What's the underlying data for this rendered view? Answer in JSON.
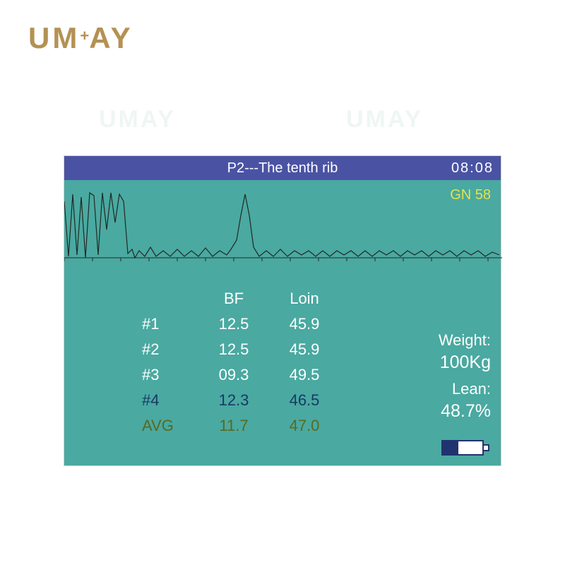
{
  "brand": {
    "text": "UMAY"
  },
  "device": {
    "titlebar": {
      "title": "P2---The tenth rib",
      "clock": "08:08",
      "bg_color": "#4a53a3",
      "text_color": "#ffffff",
      "fontsize": 20
    },
    "panel_color": "#4aa9a1",
    "gn_label": "GN 58",
    "gn_color": "#e6e24a",
    "waveform": {
      "type": "line",
      "xlim": [
        0,
        620
      ],
      "ylim": [
        0,
        120
      ],
      "baseline_y": 110,
      "axis_color": "#1f2a24",
      "line_color": "#1f2a24",
      "line_width": 1.2,
      "tick_step_x": 40,
      "tick_len": 5,
      "points": [
        [
          0,
          30
        ],
        [
          6,
          108
        ],
        [
          12,
          20
        ],
        [
          18,
          106
        ],
        [
          24,
          24
        ],
        [
          30,
          110
        ],
        [
          36,
          18
        ],
        [
          42,
          22
        ],
        [
          48,
          106
        ],
        [
          54,
          18
        ],
        [
          60,
          70
        ],
        [
          66,
          18
        ],
        [
          72,
          60
        ],
        [
          78,
          20
        ],
        [
          84,
          30
        ],
        [
          90,
          104
        ],
        [
          96,
          98
        ],
        [
          100,
          110
        ],
        [
          106,
          100
        ],
        [
          114,
          108
        ],
        [
          122,
          95
        ],
        [
          130,
          108
        ],
        [
          140,
          100
        ],
        [
          150,
          108
        ],
        [
          160,
          98
        ],
        [
          170,
          108
        ],
        [
          180,
          100
        ],
        [
          190,
          108
        ],
        [
          200,
          96
        ],
        [
          210,
          108
        ],
        [
          220,
          100
        ],
        [
          230,
          106
        ],
        [
          236,
          98
        ],
        [
          244,
          85
        ],
        [
          250,
          50
        ],
        [
          256,
          20
        ],
        [
          262,
          50
        ],
        [
          268,
          95
        ],
        [
          276,
          108
        ],
        [
          286,
          100
        ],
        [
          296,
          108
        ],
        [
          306,
          98
        ],
        [
          316,
          108
        ],
        [
          326,
          100
        ],
        [
          336,
          106
        ],
        [
          346,
          100
        ],
        [
          356,
          108
        ],
        [
          366,
          100
        ],
        [
          376,
          108
        ],
        [
          386,
          100
        ],
        [
          396,
          106
        ],
        [
          406,
          100
        ],
        [
          416,
          108
        ],
        [
          426,
          100
        ],
        [
          436,
          108
        ],
        [
          446,
          100
        ],
        [
          456,
          106
        ],
        [
          466,
          100
        ],
        [
          476,
          108
        ],
        [
          486,
          100
        ],
        [
          496,
          106
        ],
        [
          506,
          100
        ],
        [
          516,
          108
        ],
        [
          526,
          100
        ],
        [
          536,
          106
        ],
        [
          546,
          100
        ],
        [
          556,
          108
        ],
        [
          566,
          100
        ],
        [
          576,
          106
        ],
        [
          586,
          100
        ],
        [
          596,
          108
        ],
        [
          606,
          102
        ],
        [
          616,
          106
        ]
      ]
    },
    "table": {
      "headers": {
        "label": "",
        "bf": "BF",
        "loin": "Loin"
      },
      "header_color": "#ffffff",
      "row_color_default": "#ffffff",
      "row_color_highlight": "#173a63",
      "row_color_avg": "#586a1f",
      "fontsize": 22,
      "rows": [
        {
          "label": "#1",
          "bf": "12.5",
          "loin": "45.9",
          "style": "default"
        },
        {
          "label": "#2",
          "bf": "12.5",
          "loin": "45.9",
          "style": "default"
        },
        {
          "label": "#3",
          "bf": "09.3",
          "loin": "49.5",
          "style": "default"
        },
        {
          "label": "#4",
          "bf": "12.3",
          "loin": "46.5",
          "style": "highlight"
        },
        {
          "label": "AVG",
          "bf": "11.7",
          "loin": "47.0",
          "style": "avg"
        }
      ]
    },
    "stats": {
      "weight_label": "Weight:",
      "weight_value": "100Kg",
      "lean_label": "Lean:",
      "lean_value": "48.7%",
      "text_color": "#ffffff",
      "fontsize": 22
    },
    "battery": {
      "percent": 40,
      "border_color": "#21336f",
      "fill_color": "#21336f",
      "bg_color": "#ffffff"
    }
  }
}
